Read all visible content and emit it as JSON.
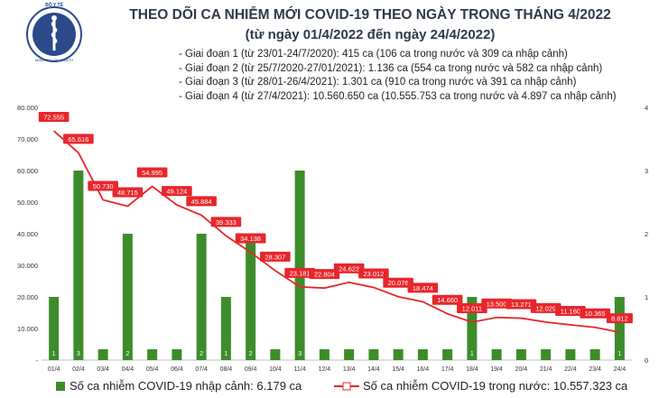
{
  "header": {
    "title": "THEO DÕI CA NHIỄM MỚI COVID-19 THEO NGÀY TRONG THÁNG 4/2022",
    "subtitle": "(từ ngày 01/4/2022 đến ngày 24/4/2022)",
    "logo_text": "BỘ Y TẾ",
    "logo_text_bottom": "MINISTRY OF HEALTH"
  },
  "phases": [
    "- Giai đoạn 1 (từ 23/01-24/7/2020): 415 ca (106 ca trong nước và 309 ca nhập cảnh)",
    "- Giai đoạn 2 (từ 25/7/2020-27/01/2021): 1.136 ca (554 ca trong nước và 582 ca nhập cảnh)",
    "- Giai đoạn 3 (từ 28/01-26/4/2021): 1.301 ca (910 ca trong nước và 391 ca nhập cảnh)",
    "- Giai đoạn 4 (từ 27/4/2021): 10.560.650 ca (10.555.753 ca trong nước và 4.897 ca nhập cảnh)"
  ],
  "legend": {
    "bars": "Số ca nhiễm COVID-19 nhập cảnh: 6.179 ca",
    "line": "Số ca nhiễm COVID-19 trong nước: 10.557.323 ca"
  },
  "colors": {
    "bar": "#3c8d2a",
    "line": "#e8262b",
    "label_box": "#e8262b",
    "title": "#2f3a4a"
  },
  "chart_data": {
    "type": "bar+line",
    "categories": [
      "01/4",
      "02/4",
      "03/4",
      "04/4",
      "05/4",
      "06/4",
      "07/4",
      "08/4",
      "09/4",
      "10/4",
      "11/4",
      "12/4",
      "13/4",
      "14/4",
      "15/4",
      "16/4",
      "17/4",
      "18/4",
      "19/4",
      "20/4",
      "21/4",
      "22/4",
      "23/4",
      "24/4"
    ],
    "series": [
      {
        "name": "Số ca nhiễm COVID-19 nhập cảnh: 6.179 ca",
        "kind": "bar",
        "axis": "right",
        "values": [
          1,
          3,
          0,
          2,
          0,
          0,
          2,
          1,
          2,
          0,
          3,
          0,
          0,
          0,
          0,
          0,
          0,
          1,
          0,
          0,
          0,
          0,
          0,
          1
        ],
        "labels": [
          "1",
          "3",
          "",
          "2",
          "",
          "",
          "2",
          "1",
          "2",
          "",
          "3",
          "",
          "",
          "",
          "",
          "",
          "",
          "1",
          "",
          "",
          "",
          "",
          "",
          "1"
        ]
      },
      {
        "name": "Số ca nhiễm COVID-19 trong nước: 10.557.323 ca",
        "kind": "line",
        "axis": "left",
        "values": [
          72555,
          65616,
          50730,
          48715,
          54995,
          49124,
          45884,
          39333,
          34138,
          28307,
          23181,
          22804,
          24623,
          23012,
          20076,
          18474,
          14660,
          12011,
          13500,
          13271,
          12029,
          11160,
          10365,
          8812
        ],
        "labels": [
          "72.555",
          "65.616",
          "50.730",
          "48.715",
          "54.995",
          "49.124",
          "45.884",
          "39.333",
          "34.138",
          "28.307",
          "23.181",
          "22.804",
          "24.623",
          "23.012",
          "20.076",
          "18.474",
          "14.660",
          "12.011",
          "13.500",
          "13.271",
          "12.029",
          "11.160",
          "10.365",
          "8.812"
        ]
      }
    ],
    "y_left": {
      "ylim": [
        0,
        80000
      ],
      "ticks": [
        "-",
        "10.000",
        "20.000",
        "30.000",
        "40.000",
        "50.000",
        "60.000",
        "70.000",
        "80.000"
      ]
    },
    "y_right": {
      "ylim": [
        0,
        4
      ],
      "ticks": [
        "0",
        "1",
        "2",
        "3",
        "4"
      ]
    },
    "grid": false,
    "legend_position": "bottom"
  }
}
